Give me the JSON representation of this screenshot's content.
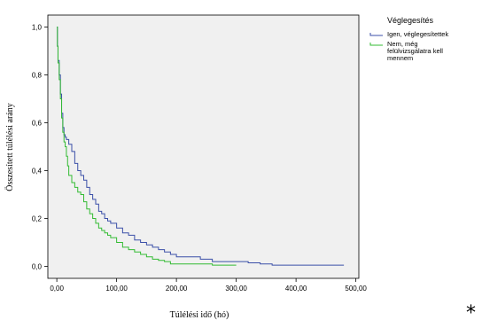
{
  "chart_data": {
    "type": "line",
    "title": "",
    "xlabel": "Túlélési idő (hó)",
    "ylabel": "Összesített túlélési arány",
    "xlim": [
      -15,
      505
    ],
    "ylim": [
      -0.05,
      1.05
    ],
    "xticks": [
      0,
      100,
      200,
      300,
      400,
      500
    ],
    "xtick_labels": [
      "0,00",
      "100,00",
      "200,00",
      "300,00",
      "400,00",
      "500,00"
    ],
    "yticks": [
      0,
      0.2,
      0.4,
      0.6,
      0.8,
      1.0
    ],
    "ytick_labels": [
      "0,0",
      "0,2",
      "0,4",
      "0,6",
      "0,8",
      "1,0"
    ],
    "grid": false,
    "step": true,
    "legend_title": "Véglegesítés",
    "legend_position": "top-right",
    "series": [
      {
        "name": "Igen, véglegesítettek",
        "color": "#3b4fa8",
        "x": [
          0,
          1,
          2,
          4,
          6,
          8,
          10,
          12,
          14,
          16,
          20,
          25,
          30,
          35,
          40,
          45,
          50,
          55,
          60,
          65,
          70,
          75,
          80,
          85,
          90,
          100,
          110,
          120,
          130,
          140,
          150,
          160,
          170,
          180,
          190,
          200,
          220,
          240,
          260,
          300,
          320,
          340,
          360,
          420,
          480
        ],
        "y": [
          1.0,
          0.92,
          0.86,
          0.8,
          0.72,
          0.64,
          0.58,
          0.55,
          0.54,
          0.53,
          0.51,
          0.48,
          0.43,
          0.4,
          0.38,
          0.36,
          0.33,
          0.3,
          0.28,
          0.26,
          0.23,
          0.22,
          0.2,
          0.19,
          0.18,
          0.16,
          0.14,
          0.13,
          0.11,
          0.1,
          0.09,
          0.08,
          0.07,
          0.06,
          0.05,
          0.04,
          0.04,
          0.03,
          0.02,
          0.02,
          0.015,
          0.01,
          0.005,
          0.005,
          0.005
        ]
      },
      {
        "name": "Nem, még felülvizsgálatra kell mennem",
        "color": "#33bb33",
        "x": [
          0,
          1,
          2,
          4,
          6,
          8,
          10,
          12,
          14,
          16,
          18,
          20,
          25,
          30,
          35,
          40,
          45,
          50,
          55,
          60,
          65,
          70,
          75,
          80,
          85,
          90,
          100,
          110,
          120,
          130,
          140,
          150,
          160,
          170,
          180,
          190,
          200,
          230,
          260,
          300
        ],
        "y": [
          1.0,
          0.92,
          0.85,
          0.78,
          0.7,
          0.62,
          0.56,
          0.52,
          0.5,
          0.46,
          0.42,
          0.38,
          0.35,
          0.33,
          0.31,
          0.3,
          0.27,
          0.24,
          0.22,
          0.2,
          0.18,
          0.16,
          0.15,
          0.14,
          0.13,
          0.12,
          0.1,
          0.08,
          0.07,
          0.06,
          0.05,
          0.04,
          0.03,
          0.025,
          0.02,
          0.01,
          0.01,
          0.01,
          0.005,
          0.005
        ]
      }
    ]
  },
  "annotation": "*"
}
